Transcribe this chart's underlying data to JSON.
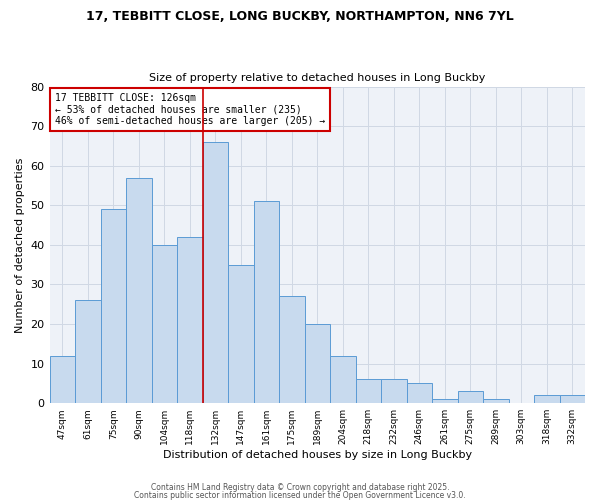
{
  "title1": "17, TEBBITT CLOSE, LONG BUCKBY, NORTHAMPTON, NN6 7YL",
  "title2": "Size of property relative to detached houses in Long Buckby",
  "xlabel": "Distribution of detached houses by size in Long Buckby",
  "ylabel": "Number of detached properties",
  "annotation_line1": "17 TEBBITT CLOSE: 126sqm",
  "annotation_line2": "← 53% of detached houses are smaller (235)",
  "annotation_line3": "46% of semi-detached houses are larger (205) →",
  "categories": [
    "47sqm",
    "61sqm",
    "75sqm",
    "90sqm",
    "104sqm",
    "118sqm",
    "132sqm",
    "147sqm",
    "161sqm",
    "175sqm",
    "189sqm",
    "204sqm",
    "218sqm",
    "232sqm",
    "246sqm",
    "261sqm",
    "275sqm",
    "289sqm",
    "303sqm",
    "318sqm",
    "332sqm"
  ],
  "values": [
    12,
    26,
    49,
    57,
    40,
    42,
    66,
    35,
    51,
    27,
    20,
    12,
    6,
    6,
    5,
    1,
    3,
    1,
    0,
    2,
    2
  ],
  "bar_color": "#c8daee",
  "bar_edge_color": "#5b9bd5",
  "marker_color": "#cc0000",
  "ylim": [
    0,
    80
  ],
  "yticks": [
    0,
    10,
    20,
    30,
    40,
    50,
    60,
    70,
    80
  ],
  "grid_color": "#d0d8e4",
  "background_color": "#eef2f8",
  "footer1": "Contains HM Land Registry data © Crown copyright and database right 2025.",
  "footer2": "Contains public sector information licensed under the Open Government Licence v3.0."
}
